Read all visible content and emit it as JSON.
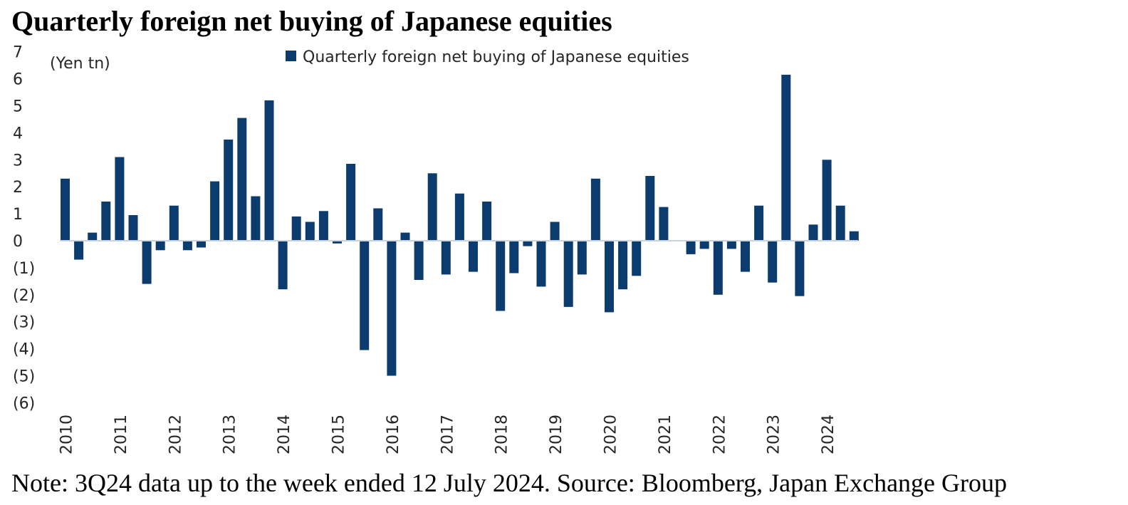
{
  "title": "Quarterly foreign net buying of Japanese equities",
  "note": "Note: 3Q24 data up to the week ended 12 July 2024. Source: Bloomberg, Japan Exchange Group",
  "colors": {
    "bar": "#0c3b6e",
    "zero_line": "#c9d3e0",
    "text": "#262626"
  },
  "chart_data": {
    "type": "bar",
    "title": "Quarterly foreign net buying of Japanese equities",
    "ylabel": "(Yen tn)",
    "xlabel": "",
    "ylim": [
      -6,
      7
    ],
    "yticks": [
      {
        "value": 7,
        "label": "7"
      },
      {
        "value": 6,
        "label": "6"
      },
      {
        "value": 5,
        "label": "5"
      },
      {
        "value": 4,
        "label": "4"
      },
      {
        "value": 3,
        "label": "3"
      },
      {
        "value": 2,
        "label": "2"
      },
      {
        "value": 1,
        "label": "1"
      },
      {
        "value": 0,
        "label": "0"
      },
      {
        "value": -1,
        "label": "(1)"
      },
      {
        "value": -2,
        "label": "(2)"
      },
      {
        "value": -3,
        "label": "(3)"
      },
      {
        "value": -4,
        "label": "(4)"
      },
      {
        "value": -5,
        "label": "(5)"
      },
      {
        "value": -6,
        "label": "(6)"
      }
    ],
    "legend": {
      "label": "Quarterly foreign net buying of Japanese equities",
      "position": "top-center"
    },
    "year_labels": [
      "2010",
      "2011",
      "2012",
      "2013",
      "2014",
      "2015",
      "2016",
      "2017",
      "2018",
      "2019",
      "2020",
      "2021",
      "2022",
      "2023",
      "2024"
    ],
    "categories": [
      "1Q10",
      "2Q10",
      "3Q10",
      "4Q10",
      "1Q11",
      "2Q11",
      "3Q11",
      "4Q11",
      "1Q12",
      "2Q12",
      "3Q12",
      "4Q12",
      "1Q13",
      "2Q13",
      "3Q13",
      "4Q13",
      "1Q14",
      "2Q14",
      "3Q14",
      "4Q14",
      "1Q15",
      "2Q15",
      "3Q15",
      "4Q15",
      "1Q16",
      "2Q16",
      "3Q16",
      "4Q16",
      "1Q17",
      "2Q17",
      "3Q17",
      "4Q17",
      "1Q18",
      "2Q18",
      "3Q18",
      "4Q18",
      "1Q19",
      "2Q19",
      "3Q19",
      "4Q19",
      "1Q20",
      "2Q20",
      "3Q20",
      "4Q20",
      "1Q21",
      "2Q21",
      "3Q21",
      "4Q21",
      "1Q22",
      "2Q22",
      "3Q22",
      "4Q22",
      "1Q23",
      "2Q23",
      "3Q23",
      "4Q23",
      "1Q24",
      "2Q24",
      "3Q24"
    ],
    "series": [
      {
        "name": "Quarterly foreign net buying of Japanese equities",
        "values": [
          2.3,
          -0.7,
          0.3,
          1.45,
          3.1,
          0.95,
          -1.6,
          -0.35,
          1.3,
          -0.35,
          -0.25,
          2.2,
          3.75,
          4.55,
          1.65,
          5.2,
          -1.8,
          0.9,
          0.7,
          1.1,
          -0.1,
          2.85,
          -4.05,
          1.2,
          -5.0,
          0.3,
          -1.45,
          2.5,
          -1.25,
          1.75,
          -1.15,
          1.45,
          -2.6,
          -1.2,
          -0.2,
          -1.7,
          0.7,
          -2.45,
          -1.25,
          2.3,
          -2.65,
          -1.8,
          -1.3,
          2.4,
          1.25,
          0.0,
          -0.5,
          -0.3,
          -2.0,
          -0.3,
          -1.15,
          1.3,
          -1.55,
          6.15,
          -2.05,
          0.6,
          3.0,
          1.3,
          0.35
        ]
      }
    ]
  }
}
